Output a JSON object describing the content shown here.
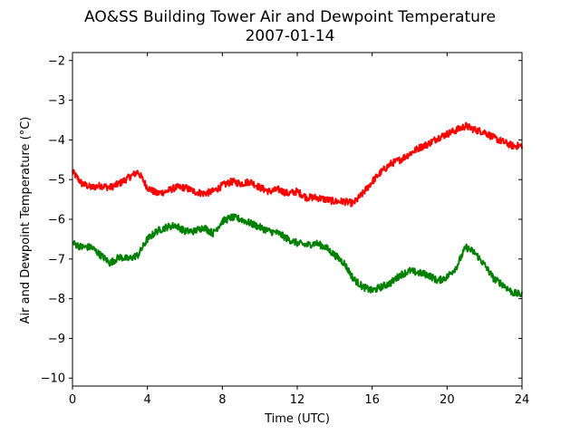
{
  "chart_data": {
    "type": "line",
    "title": "AO&SS Building Tower Air and Dewpoint Temperature",
    "subtitle": "2007-01-14",
    "xlabel": "Time (UTC)",
    "ylabel": "Air and Dewpoint Temperature (°C)",
    "xlim": [
      0,
      24
    ],
    "ylim": [
      -10.2,
      -1.8
    ],
    "xticks": [
      0,
      4,
      8,
      12,
      16,
      20,
      24
    ],
    "yticks": [
      -10,
      -9,
      -8,
      -7,
      -6,
      -5,
      -4,
      -3,
      -2
    ],
    "grid": false,
    "legend": "none",
    "series": [
      {
        "color": "#ff0000",
        "x": [
          0,
          0.5,
          1,
          1.5,
          2,
          2.5,
          3,
          3.5,
          4,
          4.5,
          5,
          5.5,
          6,
          6.5,
          7,
          7.5,
          8,
          8.5,
          9,
          9.5,
          10,
          10.5,
          11,
          11.5,
          12,
          12.5,
          13,
          13.5,
          14,
          14.5,
          15,
          15.5,
          16,
          16.5,
          17,
          17.5,
          18,
          18.5,
          19,
          19.5,
          20,
          20.5,
          21,
          21.5,
          22,
          22.5,
          23,
          23.5,
          24
        ],
        "y": [
          -4.8,
          -5.1,
          -5.2,
          -5.15,
          -5.2,
          -5.1,
          -4.95,
          -4.8,
          -5.2,
          -5.35,
          -5.3,
          -5.2,
          -5.2,
          -5.3,
          -5.35,
          -5.3,
          -5.15,
          -5.05,
          -5.1,
          -5.05,
          -5.2,
          -5.3,
          -5.25,
          -5.35,
          -5.3,
          -5.45,
          -5.45,
          -5.5,
          -5.55,
          -5.55,
          -5.6,
          -5.35,
          -5.05,
          -4.8,
          -4.6,
          -4.5,
          -4.35,
          -4.2,
          -4.1,
          -3.95,
          -3.85,
          -3.75,
          -3.65,
          -3.75,
          -3.8,
          -3.95,
          -4.05,
          -4.15,
          -4.15
        ]
      },
      {
        "color": "#008000",
        "x": [
          0,
          0.5,
          1,
          1.5,
          2,
          2.5,
          3,
          3.5,
          4,
          4.5,
          5,
          5.5,
          6,
          6.5,
          7,
          7.5,
          8,
          8.5,
          9,
          9.5,
          10,
          10.5,
          11,
          11.5,
          12,
          12.5,
          13,
          13.5,
          14,
          14.5,
          15,
          15.5,
          16,
          16.5,
          17,
          17.5,
          18,
          18.5,
          19,
          19.5,
          20,
          20.5,
          21,
          21.5,
          22,
          22.5,
          23,
          23.5,
          24
        ],
        "y": [
          -6.6,
          -6.7,
          -6.7,
          -6.9,
          -7.1,
          -6.95,
          -7.0,
          -6.9,
          -6.5,
          -6.3,
          -6.2,
          -6.15,
          -6.3,
          -6.3,
          -6.2,
          -6.35,
          -6.05,
          -5.95,
          -6.0,
          -6.1,
          -6.2,
          -6.3,
          -6.35,
          -6.5,
          -6.6,
          -6.65,
          -6.6,
          -6.7,
          -6.9,
          -7.1,
          -7.5,
          -7.7,
          -7.8,
          -7.7,
          -7.6,
          -7.4,
          -7.3,
          -7.35,
          -7.4,
          -7.55,
          -7.45,
          -7.2,
          -6.7,
          -6.85,
          -7.15,
          -7.5,
          -7.65,
          -7.85,
          -7.9
        ]
      }
    ]
  }
}
